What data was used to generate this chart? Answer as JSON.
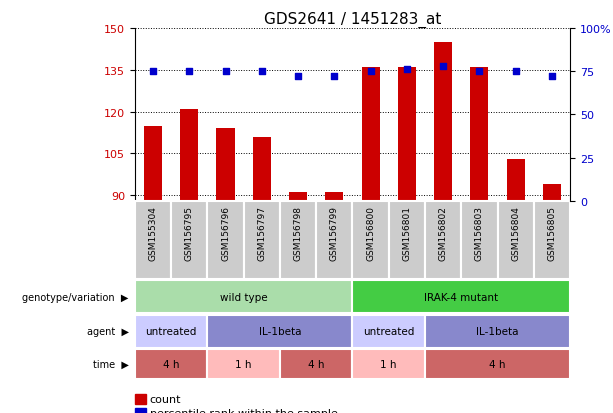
{
  "title": "GDS2641 / 1451283_at",
  "samples": [
    "GSM155304",
    "GSM156795",
    "GSM156796",
    "GSM156797",
    "GSM156798",
    "GSM156799",
    "GSM156800",
    "GSM156801",
    "GSM156802",
    "GSM156803",
    "GSM156804",
    "GSM156805"
  ],
  "counts": [
    115,
    121,
    114,
    111,
    91,
    91,
    136,
    136,
    145,
    136,
    103,
    94
  ],
  "percentile_ranks": [
    75,
    75,
    75,
    75,
    72,
    72,
    75,
    76,
    78,
    75,
    75,
    72
  ],
  "ylim_left": [
    88,
    150
  ],
  "yticks_left": [
    90,
    105,
    120,
    135,
    150
  ],
  "ylim_right": [
    0,
    100
  ],
  "yticks_right": [
    0,
    25,
    50,
    75,
    100
  ],
  "bar_color": "#cc0000",
  "dot_color": "#0000cc",
  "grid_color": "#000000",
  "genotype_groups": [
    {
      "label": "wild type",
      "start": 0,
      "end": 6,
      "color": "#aaddaa"
    },
    {
      "label": "IRAK-4 mutant",
      "start": 6,
      "end": 12,
      "color": "#44cc44"
    }
  ],
  "agent_groups": [
    {
      "label": "untreated",
      "start": 0,
      "end": 2,
      "color": "#ccccff"
    },
    {
      "label": "IL-1beta",
      "start": 2,
      "end": 6,
      "color": "#8888cc"
    },
    {
      "label": "untreated",
      "start": 6,
      "end": 8,
      "color": "#ccccff"
    },
    {
      "label": "IL-1beta",
      "start": 8,
      "end": 12,
      "color": "#8888cc"
    }
  ],
  "time_groups": [
    {
      "label": "4 h",
      "start": 0,
      "end": 2,
      "color": "#cc6666"
    },
    {
      "label": "1 h",
      "start": 2,
      "end": 4,
      "color": "#ffbbbb"
    },
    {
      "label": "4 h",
      "start": 4,
      "end": 6,
      "color": "#cc6666"
    },
    {
      "label": "1 h",
      "start": 6,
      "end": 8,
      "color": "#ffbbbb"
    },
    {
      "label": "4 h",
      "start": 8,
      "end": 12,
      "color": "#cc6666"
    }
  ],
  "row_labels": [
    "genotype/variation",
    "agent",
    "time"
  ],
  "legend_items": [
    {
      "label": "count",
      "color": "#cc0000"
    },
    {
      "label": "percentile rank within the sample",
      "color": "#0000cc"
    }
  ],
  "sample_bg": "#cccccc",
  "bg_color": "#ffffff",
  "bar_width": 0.5
}
